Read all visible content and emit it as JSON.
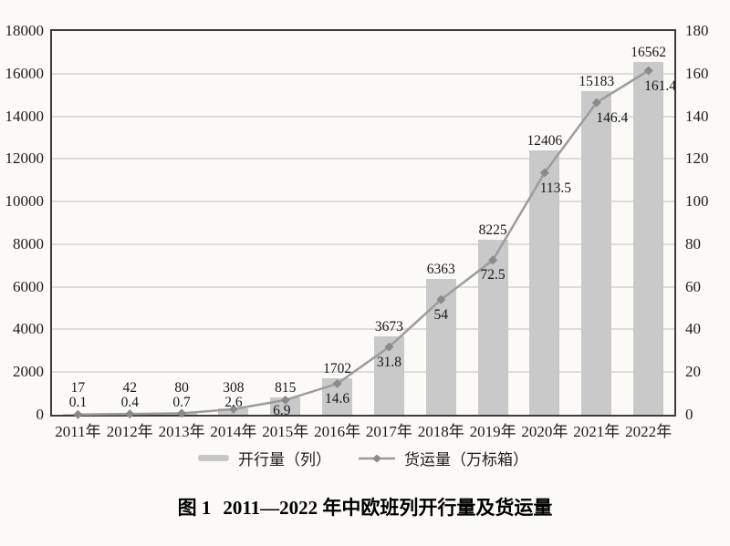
{
  "page": {
    "background": "#fcfaf6"
  },
  "chart_data": {
    "type": "bar+line",
    "title": "图 1　2011—2022 年中欧班列开行量及货运量",
    "categories": [
      "2011年",
      "2012年",
      "2013年",
      "2014年",
      "2015年",
      "2016年",
      "2017年",
      "2018年",
      "2019年",
      "2020年",
      "2021年",
      "2022年"
    ],
    "series": [
      {
        "name": "开行量（列）",
        "kind": "bar",
        "axis": "left",
        "values": [
          17,
          42,
          80,
          308,
          815,
          1702,
          3673,
          6363,
          8225,
          12406,
          15183,
          16562
        ],
        "color": "#c9c9c9"
      },
      {
        "name": "货运量（万标箱）",
        "kind": "line",
        "axis": "right",
        "values": [
          0.1,
          0.4,
          0.7,
          2.6,
          6.9,
          14.6,
          31.8,
          54,
          72.5,
          113.5,
          146.4,
          161.4
        ],
        "color": "#9c9c9c",
        "marker": "diamond",
        "marker_color": "#8a8a8a"
      }
    ],
    "left_axis": {
      "min": 0,
      "max": 18000,
      "step": 2000,
      "tick_labels": [
        "0",
        "2000",
        "4000",
        "6000",
        "8000",
        "10000",
        "12000",
        "14000",
        "16000",
        "18000"
      ]
    },
    "right_axis": {
      "min": 0,
      "max": 180,
      "step": 20,
      "tick_labels": [
        "0",
        "20",
        "40",
        "60",
        "80",
        "100",
        "120",
        "140",
        "160",
        "180"
      ]
    },
    "grid": "horizontal",
    "legend_position": "bottom",
    "layout": {
      "label_dx": [
        0,
        0,
        0,
        0,
        -4,
        0,
        0,
        0,
        0,
        12,
        17,
        13
      ]
    }
  },
  "legend": {
    "bar_label": "开行量（列）",
    "line_label": "货运量（万标箱）"
  },
  "caption": {
    "figure_label": "图 1",
    "title": "2011—2022 年中欧班列开行量及货运量"
  }
}
